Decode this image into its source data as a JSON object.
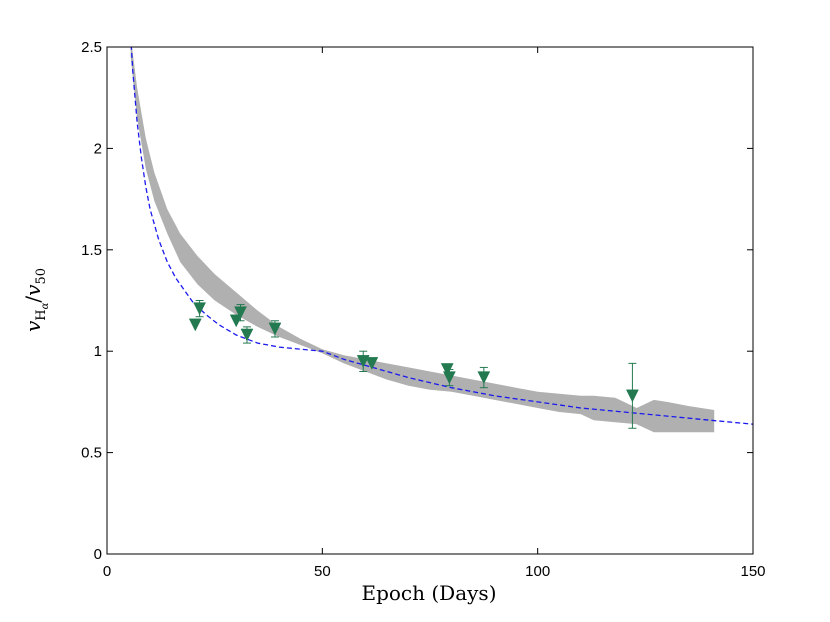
{
  "chart_data": {
    "type": "scatter",
    "title": "",
    "xlabel": "Epoch (Days)",
    "ylabel": "v_{H_α}/v_{50}",
    "ylabel_parts": {
      "v1": "v",
      "sub1": "H",
      "subsub": "α",
      "slash": "/",
      "v2": "v",
      "sub2": "50"
    },
    "xlim": [
      0,
      150
    ],
    "ylim": [
      0,
      2.5
    ],
    "xticks": [
      0,
      50,
      100,
      150
    ],
    "xtick_labels": [
      "0",
      "50",
      "100",
      "150"
    ],
    "yticks": [
      0,
      0.5,
      1,
      1.5,
      2,
      2.5
    ],
    "ytick_labels": [
      "0",
      "0.5",
      "1",
      "1.5",
      "2",
      "2.5"
    ],
    "grid": false,
    "colors": {
      "points": "#237a50",
      "band": "#b0b0b0",
      "fit": "#1a1aee",
      "axes": "#000000"
    },
    "band": {
      "name": "uncertainty band",
      "x": [
        5.5,
        7,
        9,
        11,
        14,
        17,
        21,
        25,
        30,
        35,
        40,
        45,
        50,
        55,
        60,
        65,
        70,
        75,
        80,
        85,
        90,
        95,
        100,
        105,
        110,
        113,
        118,
        123,
        127,
        130,
        135,
        141
      ],
      "upper": [
        2.55,
        2.3,
        2.05,
        1.88,
        1.7,
        1.58,
        1.47,
        1.38,
        1.29,
        1.2,
        1.12,
        1.06,
        1.01,
        0.98,
        0.96,
        0.94,
        0.92,
        0.9,
        0.88,
        0.86,
        0.84,
        0.82,
        0.8,
        0.79,
        0.78,
        0.78,
        0.77,
        0.72,
        0.76,
        0.75,
        0.73,
        0.71
      ],
      "lower": [
        2.45,
        2.15,
        1.9,
        1.74,
        1.58,
        1.44,
        1.33,
        1.25,
        1.18,
        1.12,
        1.07,
        1.03,
        0.99,
        0.94,
        0.9,
        0.86,
        0.83,
        0.81,
        0.8,
        0.78,
        0.76,
        0.74,
        0.72,
        0.7,
        0.69,
        0.66,
        0.65,
        0.64,
        0.6,
        0.6,
        0.6,
        0.6
      ]
    },
    "fit": {
      "name": "power-law fit",
      "x": [
        5.5,
        6,
        7,
        8,
        9,
        10,
        12,
        14,
        16,
        18,
        20,
        23,
        26,
        30,
        35,
        40,
        45,
        50,
        55,
        60,
        70,
        80,
        90,
        100,
        110,
        120,
        130,
        140,
        150
      ],
      "y": [
        2.55,
        2.38,
        2.13,
        1.95,
        1.81,
        1.7,
        1.55,
        1.44,
        1.36,
        1.3,
        1.24,
        1.18,
        1.13,
        1.08,
        1.04,
        1.02,
        1.01,
        1.0,
        0.96,
        0.93,
        0.87,
        0.82,
        0.78,
        0.75,
        0.72,
        0.7,
        0.68,
        0.66,
        0.64
      ]
    },
    "series": [
      {
        "name": "observations",
        "marker": "down-triangle",
        "points": [
          {
            "x": 20.5,
            "y": 1.13,
            "err": 0
          },
          {
            "x": 21.5,
            "y": 1.21,
            "err": 0.04
          },
          {
            "x": 30,
            "y": 1.15,
            "err": 0
          },
          {
            "x": 31,
            "y": 1.19,
            "err": 0.04
          },
          {
            "x": 32.5,
            "y": 1.08,
            "err": 0.04
          },
          {
            "x": 39,
            "y": 1.11,
            "err": 0.04
          },
          {
            "x": 59.5,
            "y": 0.95,
            "err": 0.05
          },
          {
            "x": 61.5,
            "y": 0.94,
            "err": 0
          },
          {
            "x": 79,
            "y": 0.91,
            "err": 0
          },
          {
            "x": 79.5,
            "y": 0.87,
            "err": 0.04
          },
          {
            "x": 87.5,
            "y": 0.87,
            "err": 0.05
          },
          {
            "x": 122,
            "y": 0.78,
            "err": 0.16
          }
        ]
      }
    ]
  }
}
